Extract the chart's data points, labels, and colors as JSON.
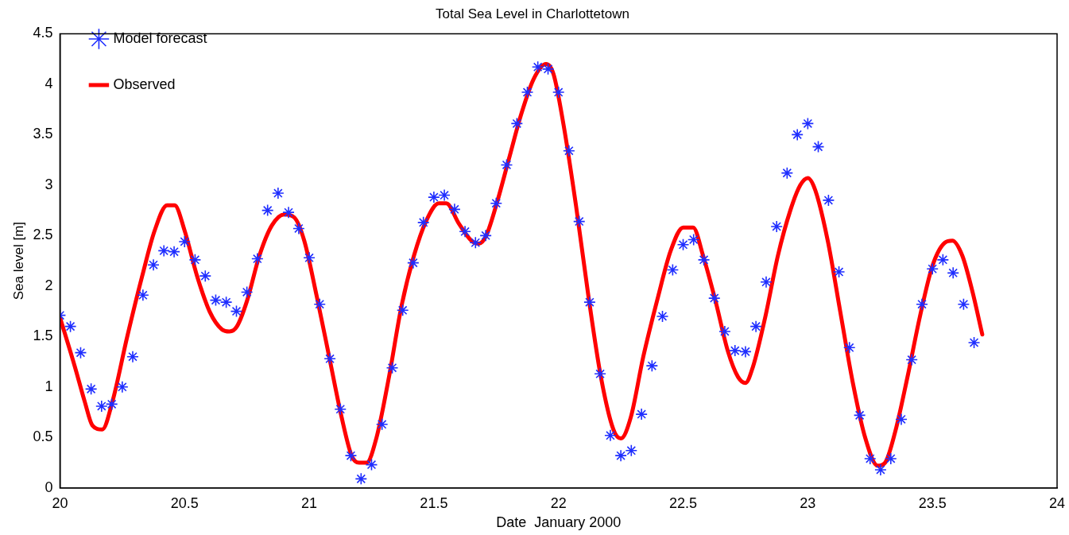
{
  "chart_data": {
    "type": "scatter",
    "title": "Total Sea Level in Charlottetown",
    "xlabel": "Date  January 2000",
    "ylabel": "Sea level [m]",
    "xlim": [
      20,
      24
    ],
    "xticks": [
      20,
      20.5,
      21,
      21.5,
      22,
      22.5,
      23,
      23.5,
      24
    ],
    "ylim": [
      0,
      4.5
    ],
    "yticks": [
      0,
      0.5,
      1,
      1.5,
      2,
      2.5,
      3,
      3.5,
      4,
      4.5
    ],
    "grid": false,
    "legend": "top left",
    "series": [
      {
        "name": "Model forecast",
        "marker": "cross",
        "color": "#1f2eff",
        "x": [
          20.0,
          20.042,
          20.083,
          20.125,
          20.167,
          20.208,
          20.25,
          20.292,
          20.333,
          20.375,
          20.417,
          20.458,
          20.5,
          20.542,
          20.583,
          20.625,
          20.667,
          20.708,
          20.75,
          20.792,
          20.833,
          20.875,
          20.917,
          20.958,
          21.0,
          21.042,
          21.083,
          21.125,
          21.167,
          21.208,
          21.25,
          21.292,
          21.333,
          21.375,
          21.417,
          21.458,
          21.5,
          21.542,
          21.583,
          21.625,
          21.667,
          21.708,
          21.75,
          21.792,
          21.833,
          21.875,
          21.917,
          21.958,
          22.0,
          22.042,
          22.083,
          22.125,
          22.167,
          22.208,
          22.25,
          22.292,
          22.333,
          22.375,
          22.417,
          22.458,
          22.5,
          22.542,
          22.583,
          22.625,
          22.667,
          22.708,
          22.75,
          22.792,
          22.833,
          22.875,
          22.917,
          22.958,
          23.0,
          23.042,
          23.083,
          23.125,
          23.167,
          23.208,
          23.25,
          23.292,
          23.333,
          23.375,
          23.417,
          23.458,
          23.5,
          23.542,
          23.583,
          23.625,
          23.667
        ],
        "values": [
          1.71,
          1.6,
          1.34,
          0.98,
          0.81,
          0.83,
          1.0,
          1.3,
          1.91,
          2.21,
          2.35,
          2.34,
          2.44,
          2.26,
          2.1,
          1.86,
          1.84,
          1.75,
          1.94,
          2.27,
          2.75,
          2.92,
          2.73,
          2.57,
          2.28,
          1.82,
          1.28,
          0.78,
          0.32,
          0.09,
          0.23,
          0.63,
          1.19,
          1.76,
          2.23,
          2.63,
          2.88,
          2.9,
          2.76,
          2.54,
          2.43,
          2.5,
          2.82,
          3.2,
          3.61,
          3.92,
          4.17,
          4.15,
          3.92,
          3.34,
          2.64,
          1.84,
          1.13,
          0.52,
          0.32,
          0.37,
          0.73,
          1.21,
          1.7,
          2.16,
          2.41,
          2.46,
          2.26,
          1.88,
          1.55,
          1.36,
          1.35,
          1.6,
          2.04,
          2.59,
          3.12,
          3.5,
          3.61,
          3.38,
          2.85,
          2.14,
          1.39,
          0.72,
          0.29,
          0.18,
          0.29,
          0.68,
          1.27,
          1.82,
          2.17,
          2.26,
          2.13,
          1.82,
          1.44
        ]
      },
      {
        "name": "Observed",
        "type": "line",
        "marker": "none",
        "line_style": "solid",
        "color": "#ff0000",
        "x": [
          20.0,
          20.06,
          20.1,
          20.13,
          20.17,
          20.21,
          20.27,
          20.33,
          20.38,
          20.43,
          20.46,
          20.5,
          20.55,
          20.6,
          20.65,
          20.68,
          20.71,
          20.75,
          20.8,
          20.85,
          20.9,
          20.94,
          20.98,
          21.03,
          21.08,
          21.13,
          21.17,
          21.2,
          21.23,
          21.27,
          21.32,
          21.37,
          21.42,
          21.47,
          21.52,
          21.55,
          21.6,
          21.65,
          21.68,
          21.71,
          21.75,
          21.8,
          21.85,
          21.9,
          21.95,
          21.98,
          22.02,
          22.07,
          22.12,
          22.17,
          22.22,
          22.25,
          22.29,
          22.34,
          22.4,
          22.45,
          22.5,
          22.54,
          22.58,
          22.63,
          22.68,
          22.72,
          22.75,
          22.78,
          22.83,
          22.88,
          22.93,
          22.97,
          23.0,
          23.03,
          23.08,
          23.13,
          23.18,
          23.23,
          23.28,
          23.31,
          23.35,
          23.4,
          23.45,
          23.5,
          23.55,
          23.58,
          23.62,
          23.66,
          23.7
        ],
        "values": [
          1.69,
          1.2,
          0.85,
          0.62,
          0.58,
          0.85,
          1.5,
          2.1,
          2.55,
          2.8,
          2.8,
          2.55,
          2.1,
          1.75,
          1.57,
          1.55,
          1.6,
          1.85,
          2.3,
          2.6,
          2.71,
          2.68,
          2.45,
          1.9,
          1.3,
          0.7,
          0.32,
          0.25,
          0.25,
          0.5,
          1.1,
          1.8,
          2.3,
          2.65,
          2.82,
          2.82,
          2.62,
          2.45,
          2.42,
          2.5,
          2.8,
          3.25,
          3.7,
          4.05,
          4.2,
          4.1,
          3.6,
          2.8,
          1.9,
          1.1,
          0.58,
          0.49,
          0.7,
          1.3,
          1.9,
          2.35,
          2.58,
          2.58,
          2.3,
          1.85,
          1.35,
          1.1,
          1.04,
          1.2,
          1.7,
          2.3,
          2.75,
          3.0,
          3.07,
          2.95,
          2.45,
          1.75,
          1.05,
          0.5,
          0.22,
          0.25,
          0.55,
          1.1,
          1.7,
          2.2,
          2.43,
          2.45,
          2.3,
          1.95,
          1.52
        ]
      }
    ]
  }
}
